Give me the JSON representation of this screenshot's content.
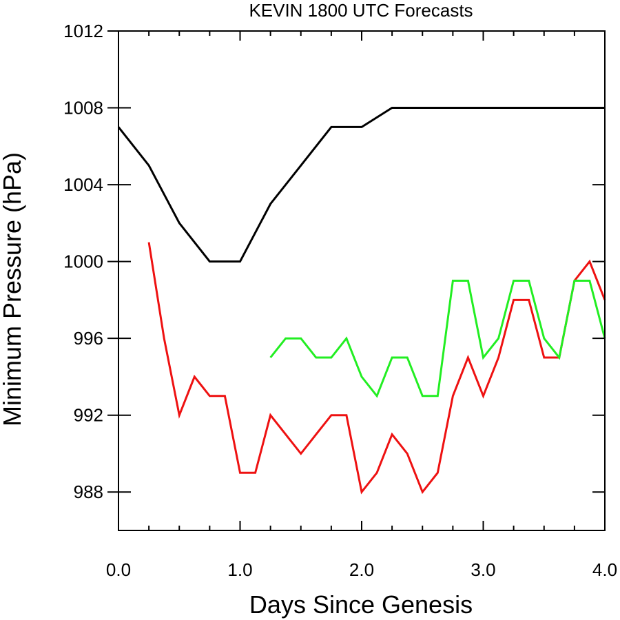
{
  "chart_data": {
    "type": "line",
    "title": "KEVIN 1800 UTC Forecasts",
    "xlabel": "Days Since Genesis",
    "ylabel": "Minimum Pressure (hPa)",
    "xlim": [
      0,
      4
    ],
    "ylim": [
      986,
      1012
    ],
    "x_ticks": [
      0,
      1,
      2,
      3,
      4
    ],
    "x_tick_labels": [
      "0.0",
      "1.0",
      "2.0",
      "3.0",
      "4.0"
    ],
    "y_ticks": [
      988,
      992,
      996,
      1000,
      1004,
      1008,
      1012
    ],
    "y_tick_labels": [
      "988",
      "992",
      "996",
      "1000",
      "1004",
      "1008",
      "1012"
    ],
    "grid": false,
    "series": [
      {
        "color": "#000000",
        "x": [
          0,
          0.25,
          0.5,
          0.75,
          1.0,
          1.25,
          1.5,
          1.75,
          2.0,
          2.25,
          2.5,
          2.75,
          3.0,
          3.25,
          3.5,
          3.75,
          4.0
        ],
        "values": [
          1007,
          1005,
          1002,
          1000,
          1000,
          1003,
          1005,
          1007,
          1007,
          1008,
          1008,
          1008,
          1008,
          1008,
          1008,
          1008,
          1008
        ]
      },
      {
        "color": "#ee1111",
        "x": [
          0.25,
          0.375,
          0.5,
          0.625,
          0.75,
          0.875,
          1.0,
          1.125,
          1.25,
          1.375,
          1.5,
          1.625,
          1.75,
          1.875,
          2.0,
          2.125,
          2.25,
          2.375,
          2.5,
          2.625,
          2.75,
          2.875,
          3.0,
          3.125,
          3.25,
          3.375,
          3.5,
          3.625,
          3.75,
          3.875,
          4.0
        ],
        "values": [
          1001,
          996,
          992,
          994,
          993,
          993,
          989,
          989,
          992,
          991,
          990,
          991,
          992,
          992,
          988,
          989,
          991,
          990,
          988,
          989,
          993,
          995,
          993,
          995,
          998,
          998,
          995,
          995,
          999,
          1000,
          998
        ]
      },
      {
        "color": "#22ee22",
        "x": [
          1.25,
          1.375,
          1.5,
          1.625,
          1.75,
          1.875,
          2.0,
          2.125,
          2.25,
          2.375,
          2.5,
          2.625,
          2.75,
          2.875,
          3.0,
          3.125,
          3.25,
          3.375,
          3.5,
          3.625,
          3.75,
          3.875,
          4.0
        ],
        "values": [
          995,
          996,
          996,
          995,
          995,
          996,
          994,
          993,
          995,
          995,
          993,
          993,
          999,
          999,
          995,
          996,
          999,
          999,
          996,
          995,
          999,
          999,
          996
        ]
      }
    ]
  }
}
